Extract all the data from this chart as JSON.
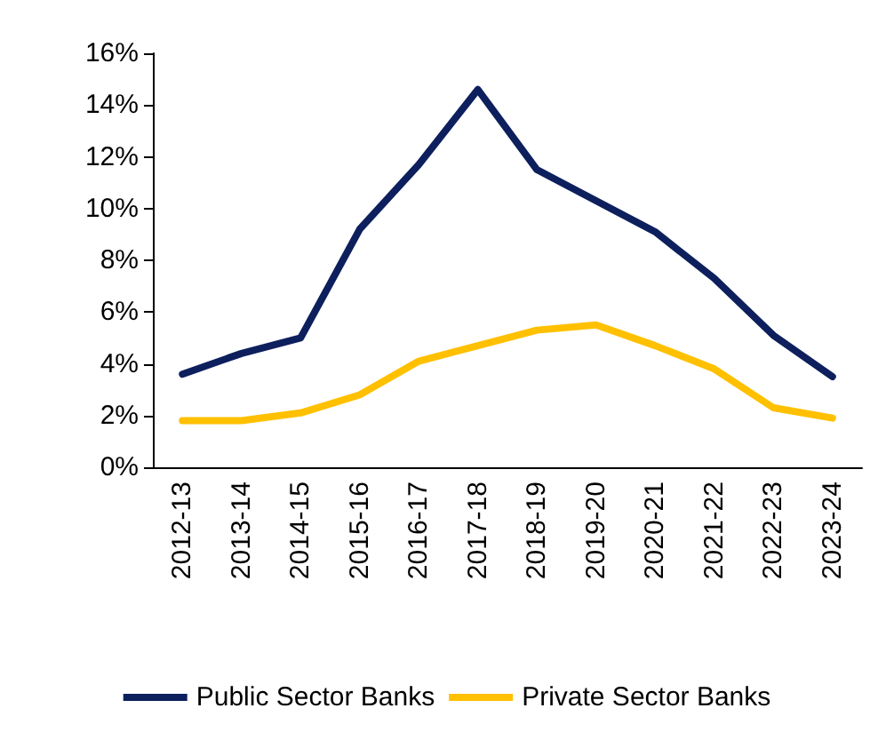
{
  "chart_data": {
    "type": "line",
    "categories": [
      "2012-13",
      "2013-14",
      "2014-15",
      "2015-16",
      "2016-17",
      "2017-18",
      "2018-19",
      "2019-20",
      "2020-21",
      "2021-22",
      "2022-23",
      "2023-24"
    ],
    "series": [
      {
        "name": "Public Sector Banks",
        "color": "#0d1f5c",
        "values": [
          3.6,
          4.4,
          5.0,
          9.2,
          11.7,
          14.6,
          11.5,
          10.3,
          9.1,
          7.3,
          5.1,
          3.5
        ]
      },
      {
        "name": "Private Sector Banks",
        "color": "#ffc000",
        "values": [
          1.8,
          1.8,
          2.1,
          2.8,
          4.1,
          4.7,
          5.3,
          5.5,
          4.7,
          3.8,
          2.3,
          1.9
        ]
      }
    ],
    "ylim": [
      0,
      16
    ],
    "yticks": [
      {
        "value": 0,
        "label": "0%"
      },
      {
        "value": 2,
        "label": "2%"
      },
      {
        "value": 4,
        "label": "4%"
      },
      {
        "value": 6,
        "label": "6%"
      },
      {
        "value": 8,
        "label": "8%"
      },
      {
        "value": 10,
        "label": "10%"
      },
      {
        "value": 12,
        "label": "12%"
      },
      {
        "value": 14,
        "label": "14%"
      },
      {
        "value": 16,
        "label": "16%"
      }
    ],
    "grid": false,
    "legend": "bottom",
    "marker": "none",
    "line_style": "solid"
  }
}
